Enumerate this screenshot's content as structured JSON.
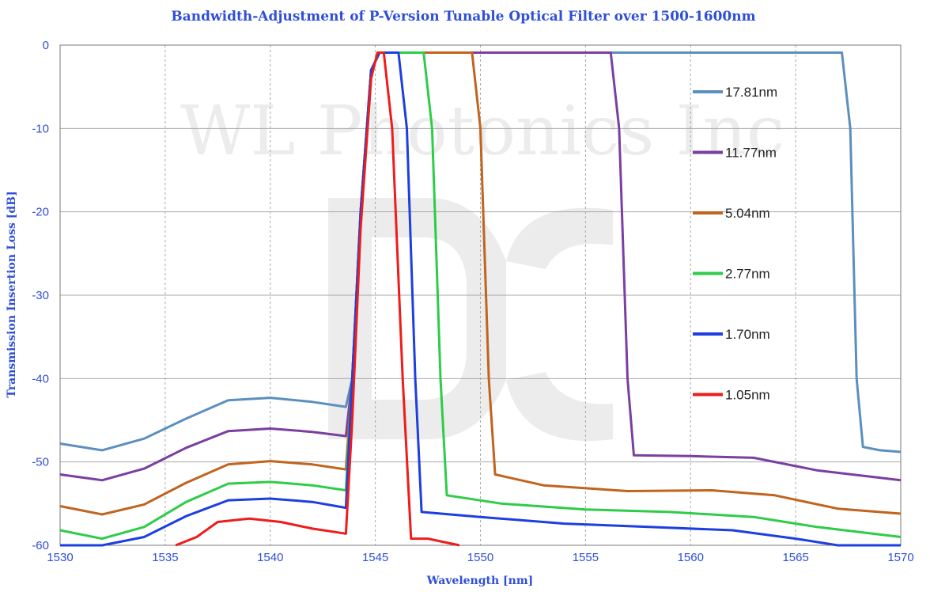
{
  "chart_data": {
    "type": "line",
    "title": "Bandwidth-Adjustment of P-Version Tunable Optical Filter over 1500-1600nm",
    "xlabel": "Wavelength [nm]",
    "ylabel": "Transmission Insertion Loss [dB]",
    "xlim": [
      1530,
      1570
    ],
    "ylim": [
      -60,
      0
    ],
    "xticks": [
      1530,
      1535,
      1540,
      1545,
      1550,
      1555,
      1560,
      1565,
      1570
    ],
    "yticks": [
      0,
      -10,
      -20,
      -30,
      -40,
      -50,
      -60
    ],
    "grid": true,
    "legend_position": "right",
    "watermark": "WL Photonics Inc",
    "series": [
      {
        "name": "17.81nm",
        "color": "#5b8fc0",
        "points": [
          [
            1530,
            -47.8
          ],
          [
            1532,
            -48.6
          ],
          [
            1534,
            -47.2
          ],
          [
            1536,
            -44.8
          ],
          [
            1538,
            -42.6
          ],
          [
            1540,
            -42.3
          ],
          [
            1542,
            -42.8
          ],
          [
            1543.6,
            -43.4
          ],
          [
            1543.9,
            -40
          ],
          [
            1544.3,
            -20
          ],
          [
            1544.8,
            -3
          ],
          [
            1545.2,
            -0.9
          ],
          [
            1567.2,
            -0.9
          ],
          [
            1567.6,
            -10
          ],
          [
            1567.9,
            -40
          ],
          [
            1568.2,
            -48.2
          ],
          [
            1569,
            -48.6
          ],
          [
            1570,
            -48.8
          ]
        ]
      },
      {
        "name": "11.77nm",
        "color": "#7a3fa0",
        "points": [
          [
            1530,
            -51.5
          ],
          [
            1532,
            -52.2
          ],
          [
            1534,
            -50.8
          ],
          [
            1536,
            -48.3
          ],
          [
            1538,
            -46.3
          ],
          [
            1540,
            -46.0
          ],
          [
            1542,
            -46.4
          ],
          [
            1543.6,
            -46.9
          ],
          [
            1543.9,
            -40
          ],
          [
            1544.3,
            -20
          ],
          [
            1544.8,
            -3
          ],
          [
            1545.2,
            -0.9
          ],
          [
            1556.2,
            -0.9
          ],
          [
            1556.6,
            -10
          ],
          [
            1557.0,
            -40
          ],
          [
            1557.3,
            -49.2
          ],
          [
            1560,
            -49.3
          ],
          [
            1563,
            -49.5
          ],
          [
            1566,
            -51.0
          ],
          [
            1570,
            -52.2
          ]
        ]
      },
      {
        "name": "5.04nm",
        "color": "#c0641e",
        "points": [
          [
            1530,
            -55.3
          ],
          [
            1532,
            -56.3
          ],
          [
            1534,
            -55.1
          ],
          [
            1536,
            -52.5
          ],
          [
            1538,
            -50.3
          ],
          [
            1540,
            -49.9
          ],
          [
            1542,
            -50.3
          ],
          [
            1543.6,
            -50.9
          ],
          [
            1543.9,
            -40
          ],
          [
            1544.3,
            -20
          ],
          [
            1544.8,
            -3
          ],
          [
            1545.2,
            -0.9
          ],
          [
            1549.6,
            -0.9
          ],
          [
            1550.0,
            -10
          ],
          [
            1550.4,
            -40
          ],
          [
            1550.7,
            -51.5
          ],
          [
            1553,
            -52.8
          ],
          [
            1557,
            -53.5
          ],
          [
            1561,
            -53.4
          ],
          [
            1564,
            -54.0
          ],
          [
            1567,
            -55.6
          ],
          [
            1570,
            -56.2
          ]
        ]
      },
      {
        "name": "2.77nm",
        "color": "#2ecc49",
        "points": [
          [
            1530,
            -58.2
          ],
          [
            1532,
            -59.2
          ],
          [
            1534,
            -57.8
          ],
          [
            1536,
            -54.8
          ],
          [
            1538,
            -52.6
          ],
          [
            1540,
            -52.4
          ],
          [
            1542,
            -52.8
          ],
          [
            1543.6,
            -53.4
          ],
          [
            1543.9,
            -40
          ],
          [
            1544.3,
            -20
          ],
          [
            1544.8,
            -3
          ],
          [
            1545.2,
            -0.9
          ],
          [
            1547.3,
            -0.9
          ],
          [
            1547.7,
            -10
          ],
          [
            1548.1,
            -40
          ],
          [
            1548.4,
            -54.0
          ],
          [
            1551,
            -55.0
          ],
          [
            1555,
            -55.7
          ],
          [
            1559,
            -56.0
          ],
          [
            1563,
            -56.6
          ],
          [
            1566,
            -57.8
          ],
          [
            1570,
            -59.0
          ]
        ]
      },
      {
        "name": "1.70nm",
        "color": "#1e3fe0",
        "points": [
          [
            1530,
            -60
          ],
          [
            1532,
            -60
          ],
          [
            1534,
            -59.0
          ],
          [
            1536,
            -56.5
          ],
          [
            1538,
            -54.6
          ],
          [
            1540,
            -54.4
          ],
          [
            1542,
            -54.8
          ],
          [
            1543.6,
            -55.5
          ],
          [
            1543.9,
            -40
          ],
          [
            1544.3,
            -20
          ],
          [
            1544.8,
            -3
          ],
          [
            1545.2,
            -0.9
          ],
          [
            1546.1,
            -0.9
          ],
          [
            1546.5,
            -10
          ],
          [
            1546.9,
            -40
          ],
          [
            1547.2,
            -56.0
          ],
          [
            1550,
            -56.6
          ],
          [
            1554,
            -57.4
          ],
          [
            1558,
            -57.8
          ],
          [
            1562,
            -58.2
          ],
          [
            1565,
            -59.2
          ],
          [
            1567,
            -60
          ],
          [
            1570,
            -60
          ]
        ]
      },
      {
        "name": "1.05nm",
        "color": "#ee1c1c",
        "points": [
          [
            1535.5,
            -60
          ],
          [
            1536.5,
            -59.0
          ],
          [
            1537.5,
            -57.2
          ],
          [
            1539,
            -56.8
          ],
          [
            1540.5,
            -57.2
          ],
          [
            1542,
            -58.0
          ],
          [
            1543.6,
            -58.6
          ],
          [
            1543.9,
            -45
          ],
          [
            1544.3,
            -22
          ],
          [
            1544.8,
            -4
          ],
          [
            1545.1,
            -0.9
          ],
          [
            1545.4,
            -0.9
          ],
          [
            1545.8,
            -10
          ],
          [
            1546.3,
            -40
          ],
          [
            1546.7,
            -59.2
          ],
          [
            1547.5,
            -59.2
          ],
          [
            1549,
            -60
          ]
        ]
      }
    ]
  }
}
